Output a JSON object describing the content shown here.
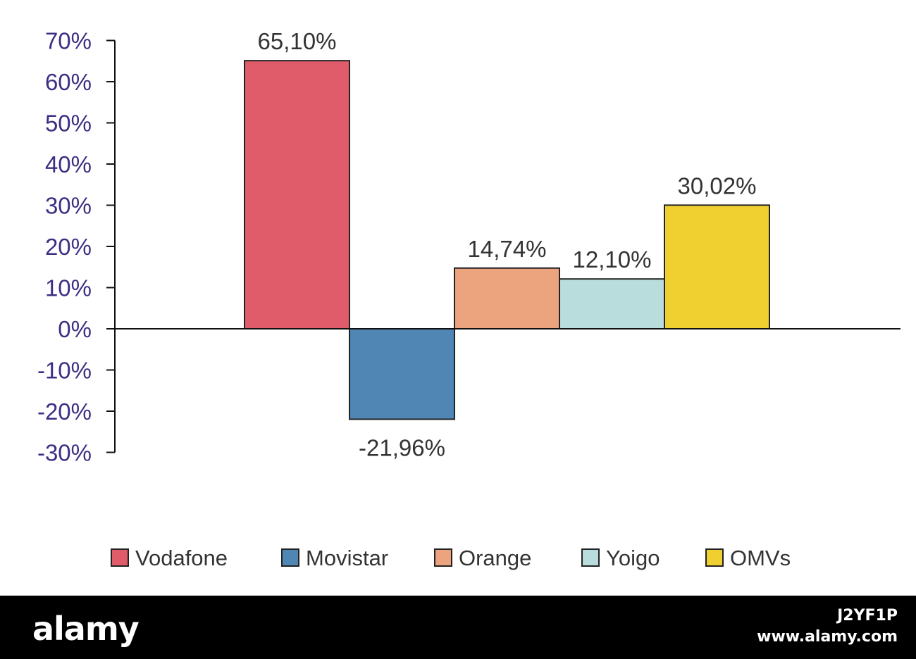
{
  "chart_data": {
    "type": "bar",
    "title": "",
    "xlabel": "",
    "ylabel": "",
    "ylim": [
      -30,
      70
    ],
    "y_ticks": [
      "70%",
      "60%",
      "50%",
      "40%",
      "30%",
      "20%",
      "10%",
      "0%",
      "-10%",
      "-20%",
      "-30%"
    ],
    "y_tick_values": [
      70,
      60,
      50,
      40,
      30,
      20,
      10,
      0,
      -10,
      -20,
      -30
    ],
    "series": [
      {
        "name": "Vodafone",
        "value": 65.1,
        "label": "65,10%",
        "color": "#e05c6b"
      },
      {
        "name": "Movistar",
        "value": -21.96,
        "label": "-21,96%",
        "color": "#4f86b4"
      },
      {
        "name": "Orange",
        "value": 14.74,
        "label": "14,74%",
        "color": "#eca47e"
      },
      {
        "name": "Yoigo",
        "value": 12.1,
        "label": "12,10%",
        "color": "#b9dcdc"
      },
      {
        "name": "OMVs",
        "value": 30.02,
        "label": "30,02%",
        "color": "#f0d030"
      }
    ],
    "legend_position": "bottom",
    "grid": false
  },
  "footer": {
    "brand": "alamy",
    "image_id": "J2YF1P",
    "url": "www.alamy.com"
  }
}
